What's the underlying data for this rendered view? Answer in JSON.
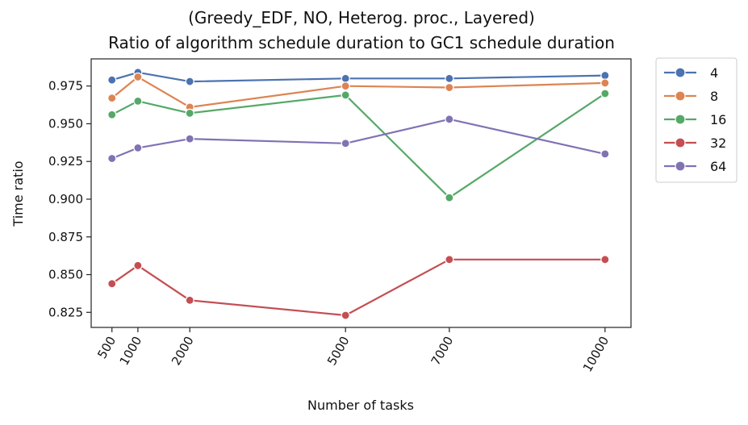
{
  "chart_data": {
    "type": "line",
    "title": "(Greedy_EDF, NO, Heterog. proc., Layered)",
    "subtitle": "Ratio of algorithm schedule duration to GC1 schedule duration",
    "xlabel": "Number of tasks",
    "ylabel": "Time ratio",
    "x": [
      500,
      1000,
      2000,
      5000,
      7000,
      10000
    ],
    "x_tick_labels": [
      "500",
      "1000",
      "2000",
      "5000",
      "7000",
      "10000"
    ],
    "ylim": [
      0.815,
      0.993
    ],
    "xlim": [
      100,
      10500
    ],
    "y_ticks": [
      0.825,
      0.85,
      0.875,
      0.9,
      0.925,
      0.95,
      0.975
    ],
    "y_tick_labels": [
      "0.825",
      "0.850",
      "0.875",
      "0.900",
      "0.925",
      "0.950",
      "0.975"
    ],
    "grid": false,
    "legend_position": "outside-top-right",
    "series": [
      {
        "name": "4",
        "color": "#4c72b0",
        "values": [
          0.979,
          0.984,
          0.978,
          0.98,
          0.98,
          0.982
        ]
      },
      {
        "name": "8",
        "color": "#dd8452",
        "values": [
          0.967,
          0.981,
          0.961,
          0.975,
          0.974,
          0.977
        ]
      },
      {
        "name": "16",
        "color": "#55a868",
        "values": [
          0.956,
          0.965,
          0.957,
          0.969,
          0.901,
          0.97
        ]
      },
      {
        "name": "32",
        "color": "#c44e52",
        "values": [
          0.844,
          0.856,
          0.833,
          0.823,
          0.86,
          0.86
        ]
      },
      {
        "name": "64",
        "color": "#8172b3",
        "values": [
          0.927,
          0.934,
          0.94,
          0.937,
          0.953,
          0.93
        ]
      }
    ]
  }
}
